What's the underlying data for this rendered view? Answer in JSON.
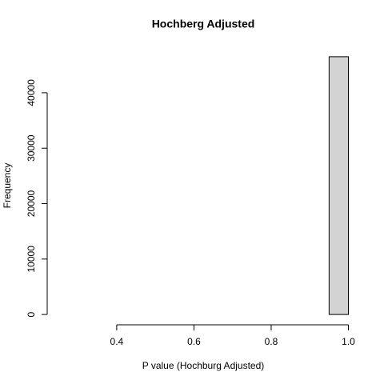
{
  "chart_data": {
    "type": "histogram",
    "title": "Hochberg Adjusted",
    "x_label": "P value (Hochburg Adjusted)",
    "y_label": "Frequency",
    "bins": [
      0.25,
      0.3,
      0.35,
      0.4,
      0.45,
      0.5,
      0.55,
      0.6,
      0.65,
      0.7,
      0.75,
      0.8,
      0.85,
      0.9,
      0.95,
      1.0
    ],
    "counts": [
      0,
      0,
      0,
      0,
      0,
      0,
      0,
      0,
      0,
      0,
      0,
      0,
      0,
      0,
      46500
    ],
    "color": "#d3d3d3",
    "xlim": [
      0.22,
      1.03
    ],
    "xticks": [
      0.4,
      0.6,
      0.8,
      {
        "value": 1.0,
        "label": "1.0"
      }
    ],
    "ylim": [
      -1860,
      48360
    ],
    "yticks": [
      0,
      10000,
      20000,
      30000,
      40000
    ]
  }
}
